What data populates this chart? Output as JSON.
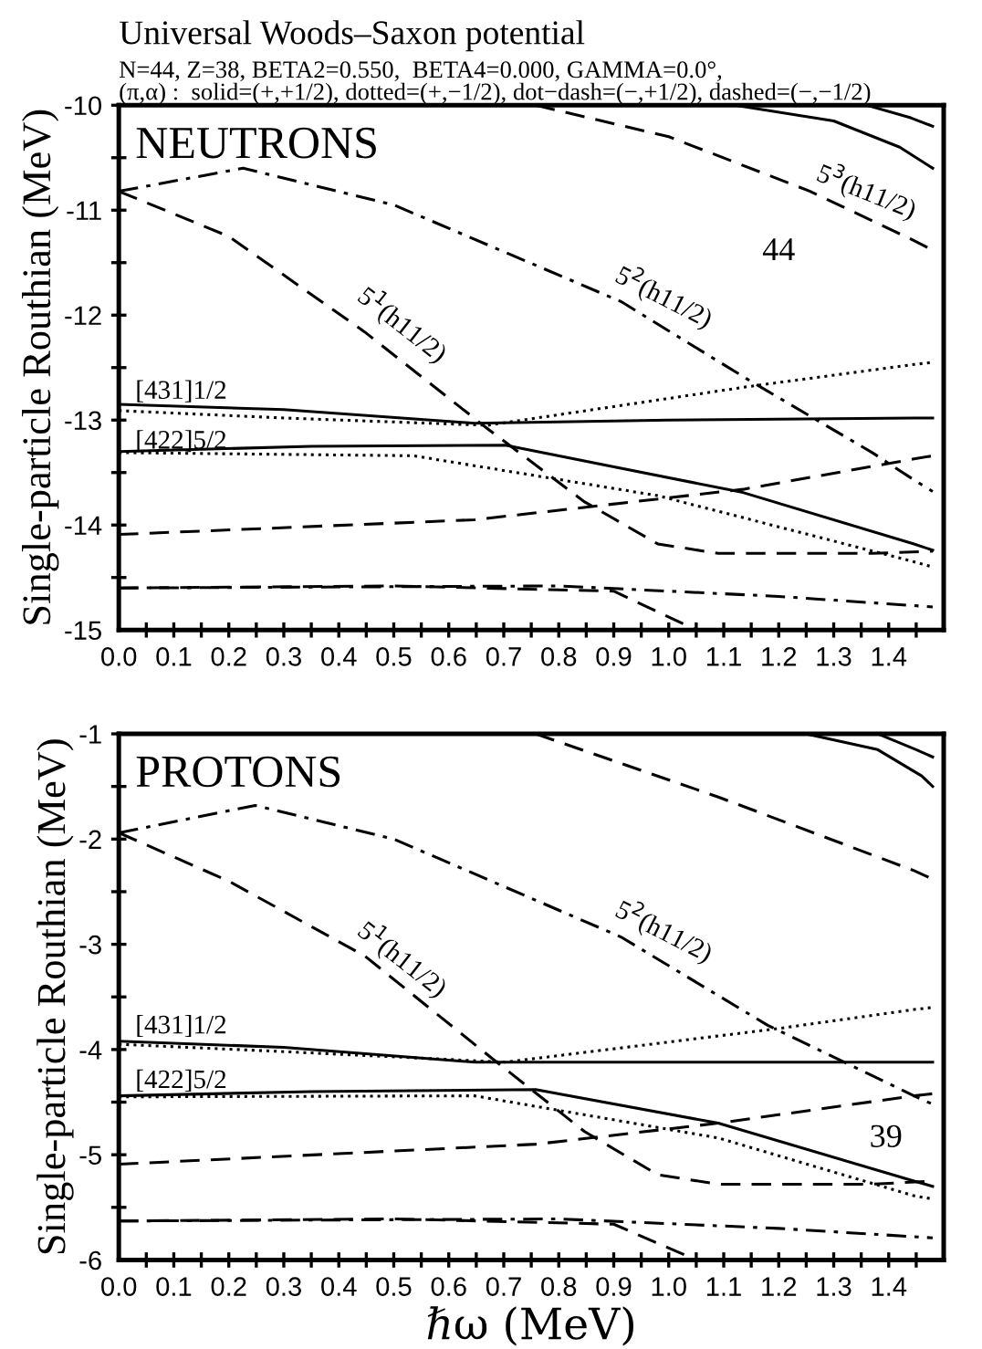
{
  "chart_data": [
    {
      "type": "line",
      "title": "Universal Woods–Saxon potential",
      "subtitle": "N=44, Z=38, BETA2=0.550,  BETA4=0.000, GAMMA=0.0°,\n(π,α) :  solid=(+,+1/2), dotted=(+,−1/2), dot−dash=(−,+1/2), dashed=(−,−1/2)",
      "ylabel": "Single-particle Routhian (MeV)",
      "legend": false,
      "grid": false,
      "marker": "none",
      "xlim": [
        0,
        1.5
      ],
      "ylim": [
        -15,
        -10
      ],
      "xticks": [
        {
          "value": 0.0,
          "label": "0.0"
        },
        {
          "value": 0.1,
          "label": "0.1"
        },
        {
          "value": 0.2,
          "label": "0.2"
        },
        {
          "value": 0.3,
          "label": "0.3"
        },
        {
          "value": 0.4,
          "label": "0.4"
        },
        {
          "value": 0.5,
          "label": "0.5"
        },
        {
          "value": 0.6,
          "label": "0.6"
        },
        {
          "value": 0.7,
          "label": "0.7"
        },
        {
          "value": 0.8,
          "label": "0.8"
        },
        {
          "value": 0.9,
          "label": "0.9"
        },
        {
          "value": 1.0,
          "label": "1.0"
        },
        {
          "value": 1.1,
          "label": "1.1"
        },
        {
          "value": 1.2,
          "label": "1.2"
        },
        {
          "value": 1.3,
          "label": "1.3"
        },
        {
          "value": 1.4,
          "label": "1.4"
        },
        {
          "value": 0.05,
          "label": null
        },
        {
          "value": 0.15,
          "label": null
        },
        {
          "value": 0.25,
          "label": null
        },
        {
          "value": 0.35,
          "label": null
        },
        {
          "value": 0.45,
          "label": null
        },
        {
          "value": 0.55,
          "label": null
        },
        {
          "value": 0.65,
          "label": null
        },
        {
          "value": 0.75,
          "label": null
        },
        {
          "value": 0.85,
          "label": null
        },
        {
          "value": 0.95,
          "label": null
        },
        {
          "value": 1.05,
          "label": null
        },
        {
          "value": 1.15,
          "label": null
        },
        {
          "value": 1.25,
          "label": null
        },
        {
          "value": 1.35,
          "label": null
        },
        {
          "value": 1.45,
          "label": null
        }
      ],
      "yticks": [
        -15,
        -14,
        -13,
        -12,
        -11,
        -10,
        {
          "value": -14.5,
          "label": null
        },
        {
          "value": -13.5,
          "label": null
        },
        {
          "value": -12.5,
          "label": null
        },
        {
          "value": -11.5,
          "label": null
        },
        {
          "value": -10.5,
          "label": null
        }
      ],
      "series": [
        {
          "line_style": "dashdot",
          "color": "#000000",
          "x": [
            0,
            0.226,
            0.5,
            0.913,
            1.146,
            1.37,
            1.446,
            1.48
          ],
          "values": [
            -10.82,
            -10.6,
            -10.95,
            -11.87,
            -12.62,
            -13.31,
            -13.57,
            -13.68
          ]
        },
        {
          "line_style": "dashed",
          "color": "#000000",
          "x": [
            0,
            0.2,
            0.447,
            0.67,
            0.847,
            0.98,
            1.09,
            1.37,
            1.48
          ],
          "values": [
            -10.82,
            -11.25,
            -12.16,
            -13.08,
            -13.78,
            -14.18,
            -14.27,
            -14.27,
            -14.25
          ]
        },
        {
          "line_style": "solid",
          "color": "#000000",
          "x": [
            0,
            0.3,
            0.647,
            1.0,
            1.446,
            1.48
          ],
          "values": [
            -12.85,
            -12.9,
            -13.03,
            -13.0,
            -12.98,
            -12.98
          ]
        },
        {
          "line_style": "dotted",
          "color": "#000000",
          "x": [
            0,
            0.3,
            0.67,
            1.146,
            1.446,
            1.48
          ],
          "values": [
            -12.91,
            -12.98,
            -13.05,
            -12.68,
            -12.47,
            -12.45
          ]
        },
        {
          "line_style": "solid",
          "color": "#000000",
          "x": [
            0,
            0.35,
            0.703,
            1.135,
            1.446,
            1.48
          ],
          "values": [
            -13.3,
            -13.25,
            -13.24,
            -13.69,
            -14.18,
            -14.24
          ]
        },
        {
          "line_style": "dotted",
          "color": "#000000",
          "x": [
            0,
            0.536,
            0.98,
            1.446,
            1.48
          ],
          "values": [
            -13.31,
            -13.34,
            -13.72,
            -14.35,
            -14.4
          ]
        },
        {
          "line_style": "dashed",
          "color": "#000000",
          "x": [
            0,
            0.647,
            1.135,
            1.446,
            1.48
          ],
          "values": [
            -14.09,
            -13.95,
            -13.66,
            -13.37,
            -13.34
          ]
        },
        {
          "line_style": "dashed",
          "color": "#000000",
          "x": [
            0.758,
            1.0,
            1.257,
            1.446,
            1.48
          ],
          "values": [
            -10.0,
            -10.3,
            -10.82,
            -11.29,
            -11.38
          ]
        },
        {
          "line_style": "solid",
          "color": "#000000",
          "x": [
            1.12,
            1.3,
            1.42,
            1.48
          ],
          "values": [
            -10.0,
            -10.15,
            -10.4,
            -10.6
          ]
        },
        {
          "line_style": "solid",
          "color": "#000000",
          "x": [
            1.36,
            1.44,
            1.48
          ],
          "values": [
            -10.0,
            -10.12,
            -10.2
          ]
        },
        {
          "line_style": "dashed",
          "color": "#000000",
          "x": [
            0,
            0.5,
            0.9,
            1.05
          ],
          "values": [
            -14.6,
            -14.58,
            -14.63,
            -15.0
          ]
        },
        {
          "line_style": "dashdot",
          "color": "#000000",
          "x": [
            0,
            0.8,
            1.2,
            1.48
          ],
          "values": [
            -14.6,
            -14.58,
            -14.68,
            -14.78
          ]
        }
      ],
      "annotations": [
        "NEUTRONS",
        "5$^{3}$(h11/2)",
        "5$^{2}$(h11/2)",
        "5$^{1}$(h11/2)",
        "[431]1/2",
        "[422]5/2",
        "44"
      ]
    },
    {
      "type": "line",
      "xlabel": "ℏω (MeV)",
      "ylabel": "Single-particle Routhian (MeV)",
      "legend": false,
      "grid": false,
      "marker": "none",
      "xlim": [
        0,
        1.5
      ],
      "ylim": [
        -6,
        -1
      ],
      "xticks": [
        {
          "value": 0.0,
          "label": "0.0"
        },
        {
          "value": 0.1,
          "label": "0.1"
        },
        {
          "value": 0.2,
          "label": "0.2"
        },
        {
          "value": 0.3,
          "label": "0.3"
        },
        {
          "value": 0.4,
          "label": "0.4"
        },
        {
          "value": 0.5,
          "label": "0.5"
        },
        {
          "value": 0.6,
          "label": "0.6"
        },
        {
          "value": 0.7,
          "label": "0.7"
        },
        {
          "value": 0.8,
          "label": "0.8"
        },
        {
          "value": 0.9,
          "label": "0.9"
        },
        {
          "value": 1.0,
          "label": "1.0"
        },
        {
          "value": 1.1,
          "label": "1.1"
        },
        {
          "value": 1.2,
          "label": "1.2"
        },
        {
          "value": 1.3,
          "label": "1.3"
        },
        {
          "value": 1.4,
          "label": "1.4"
        },
        {
          "value": 0.05,
          "label": null
        },
        {
          "value": 0.15,
          "label": null
        },
        {
          "value": 0.25,
          "label": null
        },
        {
          "value": 0.35,
          "label": null
        },
        {
          "value": 0.45,
          "label": null
        },
        {
          "value": 0.55,
          "label": null
        },
        {
          "value": 0.65,
          "label": null
        },
        {
          "value": 0.75,
          "label": null
        },
        {
          "value": 0.85,
          "label": null
        },
        {
          "value": 0.95,
          "label": null
        },
        {
          "value": 1.05,
          "label": null
        },
        {
          "value": 1.15,
          "label": null
        },
        {
          "value": 1.25,
          "label": null
        },
        {
          "value": 1.35,
          "label": null
        },
        {
          "value": 1.45,
          "label": null
        }
      ],
      "yticks": [
        -6,
        -5,
        -4,
        -3,
        -2,
        -1,
        {
          "value": -5.5,
          "label": null
        },
        {
          "value": -4.5,
          "label": null
        },
        {
          "value": -3.5,
          "label": null
        },
        {
          "value": -2.5,
          "label": null
        },
        {
          "value": -1.5,
          "label": null
        }
      ],
      "series": [
        {
          "line_style": "dashdot",
          "color": "#000000",
          "x": [
            0,
            0.248,
            0.5,
            0.913,
            1.18,
            1.446,
            1.48
          ],
          "values": [
            -1.94,
            -1.68,
            -2.0,
            -2.93,
            -3.77,
            -4.44,
            -4.52
          ]
        },
        {
          "line_style": "dashed",
          "color": "#000000",
          "x": [
            0,
            0.2,
            0.447,
            0.68,
            0.847,
            0.98,
            1.09,
            1.37,
            1.48
          ],
          "values": [
            -1.94,
            -2.4,
            -3.11,
            -4.09,
            -4.78,
            -5.19,
            -5.28,
            -5.28,
            -5.25
          ]
        },
        {
          "line_style": "solid",
          "color": "#000000",
          "x": [
            0,
            0.3,
            0.647,
            1.0,
            1.446,
            1.48
          ],
          "values": [
            -3.92,
            -3.98,
            -4.12,
            -4.12,
            -4.12,
            -4.12
          ]
        },
        {
          "line_style": "dotted",
          "color": "#000000",
          "x": [
            0,
            0.3,
            0.703,
            1.2,
            1.446,
            1.48
          ],
          "values": [
            -3.95,
            -4.02,
            -4.12,
            -3.8,
            -3.62,
            -3.6
          ]
        },
        {
          "line_style": "solid",
          "color": "#000000",
          "x": [
            0,
            0.35,
            0.758,
            1.09,
            1.446,
            1.48
          ],
          "values": [
            -4.44,
            -4.4,
            -4.38,
            -4.7,
            -5.25,
            -5.3
          ]
        },
        {
          "line_style": "dotted",
          "color": "#000000",
          "x": [
            0,
            0.647,
            1.09,
            1.446,
            1.48
          ],
          "values": [
            -4.45,
            -4.44,
            -4.84,
            -5.39,
            -5.42
          ]
        },
        {
          "line_style": "dashed",
          "color": "#000000",
          "x": [
            0,
            0.758,
            1.09,
            1.446,
            1.48
          ],
          "values": [
            -5.09,
            -4.9,
            -4.7,
            -4.44,
            -4.42
          ]
        },
        {
          "line_style": "dashed",
          "color": "#000000",
          "x": [
            0.758,
            1.09,
            1.446,
            1.48
          ],
          "values": [
            -1.0,
            -1.6,
            -2.3,
            -2.38
          ]
        },
        {
          "line_style": "solid",
          "color": "#000000",
          "x": [
            1.25,
            1.38,
            1.46,
            1.48
          ],
          "values": [
            -1.0,
            -1.15,
            -1.4,
            -1.5
          ]
        },
        {
          "line_style": "solid",
          "color": "#000000",
          "x": [
            1.38,
            1.45,
            1.48
          ],
          "values": [
            -1.0,
            -1.15,
            -1.22
          ]
        },
        {
          "line_style": "dashed",
          "color": "#000000",
          "x": [
            0,
            0.5,
            0.9,
            1.05
          ],
          "values": [
            -5.63,
            -5.61,
            -5.66,
            -6.0
          ]
        },
        {
          "line_style": "dashdot",
          "color": "#000000",
          "x": [
            0,
            0.8,
            1.2,
            1.48
          ],
          "values": [
            -5.63,
            -5.61,
            -5.7,
            -5.79
          ]
        }
      ],
      "annotations": [
        "PROTONS",
        "5$^{2}$(h11/2)",
        "5$^{1}$(h11/2)",
        "[431]1/2",
        "[422]5/2",
        "39"
      ]
    }
  ]
}
